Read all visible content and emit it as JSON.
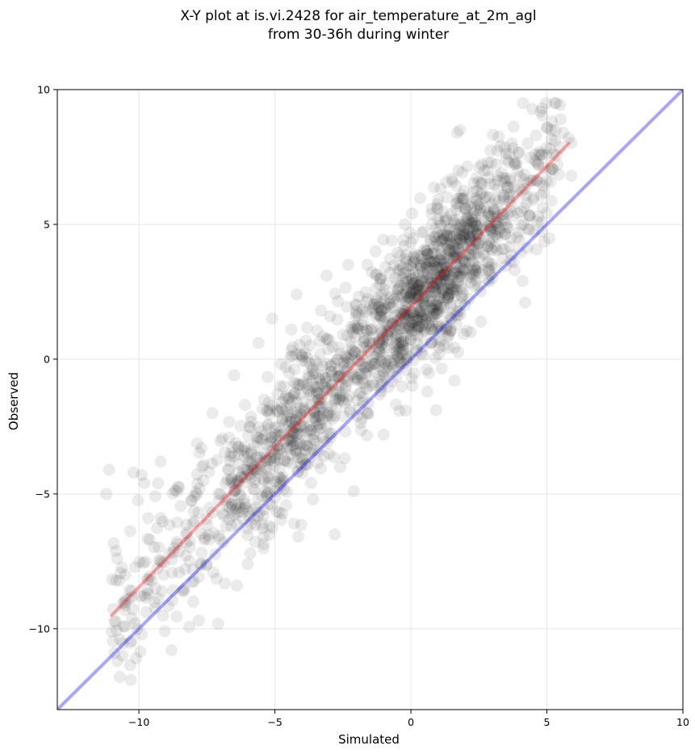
{
  "chart_data": {
    "type": "scatter",
    "title_line1": "X-Y plot at is.vi.2428 for air_temperature_at_2m_agl",
    "title_line2": "from 30-36h during winter",
    "xlabel": "Simulated",
    "ylabel": "Observed",
    "xlim": [
      -13,
      10
    ],
    "ylim": [
      -13,
      10
    ],
    "xticks": [
      -10,
      -5,
      0,
      5,
      10
    ],
    "yticks": [
      -10,
      -5,
      0,
      5,
      10
    ],
    "xtick_labels": [
      "−10",
      "−5",
      "0",
      "5",
      "10"
    ],
    "ytick_labels": [
      "−10",
      "−5",
      "0",
      "5",
      "10"
    ],
    "grid": true,
    "point_color": "#000000",
    "point_opacity": 0.08,
    "identity_line": {
      "x": [
        -13,
        10
      ],
      "y": [
        -13,
        10
      ],
      "color": "#0000ff"
    },
    "fit_line": {
      "x": [
        -11,
        5.8
      ],
      "y": [
        -9.5,
        8.0
      ],
      "color": "#ff0000"
    },
    "point_count": 1800,
    "points": [
      [
        -11.1,
        -4.1
      ],
      [
        -11.2,
        -5.0
      ],
      [
        -10.9,
        -10.9
      ],
      [
        -10.8,
        -7.4
      ],
      [
        -10.7,
        -10.4
      ],
      [
        -10.6,
        -11.0
      ],
      [
        -10.5,
        -8.0
      ],
      [
        -10.3,
        -11.9
      ],
      [
        -10.2,
        -4.2
      ],
      [
        -10.1,
        -11.1
      ],
      [
        -9.9,
        -10.2
      ],
      [
        -9.9,
        -4.3
      ],
      [
        -9.8,
        -4.6
      ],
      [
        -9.6,
        -6.7
      ],
      [
        -9.4,
        -8.5
      ],
      [
        -9.2,
        -3.8
      ],
      [
        -9.1,
        -8.0
      ],
      [
        -8.8,
        -10.8
      ],
      [
        -8.7,
        -7.0
      ],
      [
        -8.6,
        -4.9
      ],
      [
        -8.4,
        -8.6
      ],
      [
        -8.0,
        -9.0
      ],
      [
        -7.8,
        -9.7
      ],
      [
        -7.7,
        -3.3
      ],
      [
        -7.5,
        -7.6
      ],
      [
        -7.3,
        -2.0
      ],
      [
        -7.0,
        -5.0
      ],
      [
        -6.9,
        -6.8
      ],
      [
        -6.6,
        -6.2
      ],
      [
        -6.5,
        -0.6
      ],
      [
        -6.4,
        -8.4
      ],
      [
        -6.1,
        -1.7
      ],
      [
        -6.0,
        -3.5
      ],
      [
        -5.9,
        -7.2
      ],
      [
        -5.7,
        -5.5
      ],
      [
        -5.6,
        0.6
      ],
      [
        -5.4,
        -1.5
      ],
      [
        -5.2,
        -6.2
      ],
      [
        -5.1,
        1.5
      ],
      [
        -4.9,
        -4.8
      ],
      [
        -4.8,
        -1.0
      ],
      [
        -4.6,
        -0.3
      ],
      [
        -4.4,
        1.1
      ],
      [
        -4.3,
        -6.1
      ],
      [
        -4.2,
        2.4
      ],
      [
        -4.0,
        0.1
      ],
      [
        -3.8,
        -3.2
      ],
      [
        -3.6,
        -5.2
      ],
      [
        -3.4,
        -2.6
      ],
      [
        -3.3,
        1.8
      ],
      [
        -3.1,
        3.1
      ],
      [
        -2.9,
        -1.2
      ],
      [
        -2.8,
        -6.5
      ],
      [
        -2.6,
        -4.0
      ],
      [
        -2.5,
        0.9
      ],
      [
        -2.3,
        3.5
      ],
      [
        -2.1,
        -4.9
      ],
      [
        -2.0,
        2.0
      ],
      [
        -1.8,
        -2.2
      ],
      [
        -1.6,
        3.5
      ],
      [
        -1.5,
        -1.0
      ],
      [
        -1.3,
        4.0
      ],
      [
        -1.2,
        0.4
      ],
      [
        -1.0,
        -2.8
      ],
      [
        -0.9,
        2.8
      ],
      [
        -0.7,
        4.4
      ],
      [
        -0.5,
        0.1
      ],
      [
        -0.4,
        3.3
      ],
      [
        -0.2,
        -1.9
      ],
      [
        -0.1,
        2.3
      ],
      [
        0.1,
        3.8
      ],
      [
        0.3,
        1.2
      ],
      [
        0.4,
        4.7
      ],
      [
        0.6,
        -1.2
      ],
      [
        0.7,
        3.0
      ],
      [
        0.9,
        2.0
      ],
      [
        1.0,
        5.2
      ],
      [
        1.2,
        0.5
      ],
      [
        1.3,
        3.4
      ],
      [
        1.5,
        4.3
      ],
      [
        1.6,
        -0.8
      ],
      [
        1.7,
        8.4
      ],
      [
        1.8,
        8.5
      ],
      [
        1.9,
        2.6
      ],
      [
        2.0,
        5.6
      ],
      [
        2.2,
        1.0
      ],
      [
        2.3,
        4.9
      ],
      [
        2.5,
        3.2
      ],
      [
        2.6,
        6.5
      ],
      [
        2.7,
        7.0
      ],
      [
        2.9,
        4.3
      ],
      [
        3.0,
        3.0
      ],
      [
        3.2,
        6.8
      ],
      [
        3.3,
        7.9
      ],
      [
        3.5,
        5.0
      ],
      [
        3.6,
        7.3
      ],
      [
        3.8,
        6.4
      ],
      [
        4.0,
        4.4
      ],
      [
        4.1,
        2.9
      ],
      [
        4.2,
        2.1
      ],
      [
        4.3,
        8.0
      ],
      [
        4.5,
        6.0
      ],
      [
        4.6,
        8.3
      ],
      [
        4.8,
        7.6
      ],
      [
        5.0,
        8.6
      ],
      [
        5.1,
        7.0
      ],
      [
        5.3,
        8.1
      ],
      [
        5.5,
        8.9
      ],
      [
        5.6,
        8.4
      ],
      [
        5.8,
        8.2
      ]
    ]
  }
}
